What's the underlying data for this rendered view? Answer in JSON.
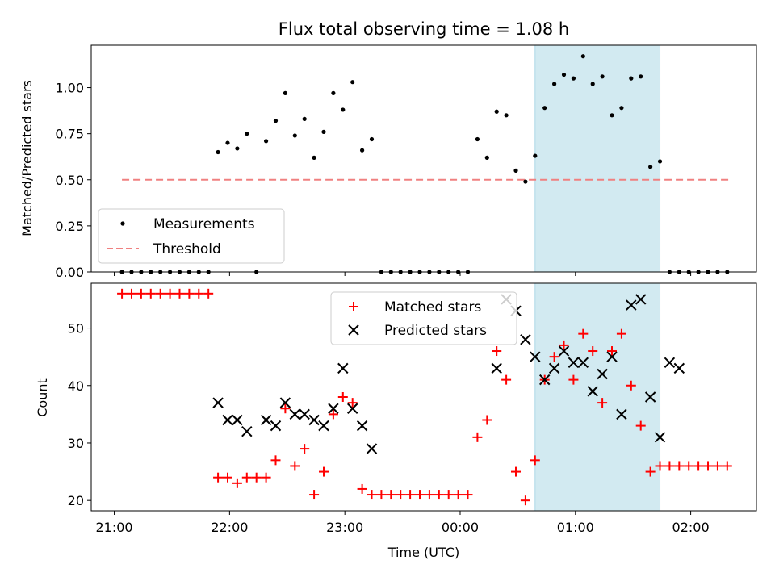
{
  "chart_data": [
    {
      "type": "scatter",
      "title": "Flux total observing time = 1.08 h",
      "xlabel": "",
      "ylabel": "Matched/Predicted stars",
      "ylim": [
        0,
        1.23
      ],
      "yticks": [
        "0.00",
        "0.25",
        "0.50",
        "0.75",
        "1.00"
      ],
      "yticks_values": [
        0,
        0.25,
        0.5,
        0.75,
        1.0
      ],
      "xlim_hours": [
        -0.2,
        5.57
      ],
      "highlight_span": {
        "from": "00:39",
        "to": "01:44",
        "color": "#add8e6"
      },
      "legend": {
        "placement": "lower left",
        "entries": [
          "Measurements",
          "Threshold"
        ]
      },
      "threshold": {
        "name": "Threshold",
        "y": 0.5,
        "x_range": [
          "21:04",
          "02:20"
        ],
        "color": "#f08080"
      },
      "series": [
        {
          "name": "Measurements",
          "color": "#000000",
          "x": [
            "21:04",
            "21:09",
            "21:14",
            "21:19",
            "21:24",
            "21:29",
            "21:34",
            "21:39",
            "21:44",
            "21:49",
            "21:54",
            "21:59",
            "22:04",
            "22:09",
            "22:14",
            "22:19",
            "22:24",
            "22:29",
            "22:34",
            "22:39",
            "22:44",
            "22:49",
            "22:54",
            "22:59",
            "23:04",
            "23:09",
            "23:14",
            "23:19",
            "23:24",
            "23:29",
            "23:34",
            "23:39",
            "23:44",
            "23:49",
            "23:54",
            "23:59",
            "00:04",
            "00:09",
            "00:14",
            "00:19",
            "00:24",
            "00:29",
            "00:34",
            "00:39",
            "00:44",
            "00:49",
            "00:54",
            "00:59",
            "01:04",
            "01:09",
            "01:14",
            "01:19",
            "01:24",
            "01:29",
            "01:34",
            "01:39",
            "01:44",
            "01:49",
            "01:54",
            "01:59",
            "02:04",
            "02:09",
            "02:14",
            "02:19"
          ],
          "y": [
            0,
            0,
            0,
            0,
            0,
            0,
            0,
            0,
            0,
            0,
            0.65,
            0.7,
            0.67,
            0.75,
            0,
            0.71,
            0.82,
            0.97,
            0.74,
            0.83,
            0.62,
            0.76,
            0.97,
            0.88,
            1.03,
            0.66,
            0.72,
            0,
            0,
            0,
            0,
            0,
            0,
            0,
            0,
            0,
            0,
            0.72,
            0.62,
            0.87,
            0.85,
            0.55,
            0.49,
            0.63,
            0.89,
            1.02,
            1.07,
            1.05,
            1.17,
            1.02,
            1.06,
            0.85,
            0.89,
            1.05,
            1.06,
            0.57,
            0.6,
            0,
            0,
            0,
            0,
            0,
            0,
            0
          ]
        }
      ]
    },
    {
      "type": "scatter",
      "title": "",
      "xlabel": "Time (UTC)",
      "ylabel": "Count",
      "ylim": [
        18.2,
        57.8
      ],
      "yticks": [
        "20",
        "30",
        "40",
        "50"
      ],
      "yticks_values": [
        20,
        30,
        40,
        50
      ],
      "xticks": [
        "21:00",
        "22:00",
        "23:00",
        "00:00",
        "01:00",
        "02:00"
      ],
      "xticks_values": [
        0,
        1,
        2,
        3,
        4,
        5
      ],
      "xlim_hours": [
        -0.2,
        5.57
      ],
      "highlight_span": {
        "from": "00:39",
        "to": "01:44",
        "color": "#add8e6"
      },
      "legend": {
        "placement": "upper center",
        "entries": [
          "Matched stars",
          "Predicted stars"
        ]
      },
      "series": [
        {
          "name": "Matched stars",
          "marker": "plus",
          "color": "#ff0000",
          "x": [
            "21:04",
            "21:09",
            "21:14",
            "21:19",
            "21:24",
            "21:29",
            "21:34",
            "21:39",
            "21:44",
            "21:49",
            "21:54",
            "21:59",
            "22:04",
            "22:09",
            "22:14",
            "22:19",
            "22:24",
            "22:29",
            "22:34",
            "22:39",
            "22:44",
            "22:49",
            "22:54",
            "22:59",
            "23:04",
            "23:09",
            "23:14",
            "23:19",
            "23:24",
            "23:29",
            "23:34",
            "23:39",
            "23:44",
            "23:49",
            "23:54",
            "23:59",
            "00:04",
            "00:09",
            "00:14",
            "00:19",
            "00:24",
            "00:29",
            "00:34",
            "00:39",
            "00:44",
            "00:49",
            "00:54",
            "00:59",
            "01:04",
            "01:09",
            "01:14",
            "01:19",
            "01:24",
            "01:29",
            "01:34",
            "01:39",
            "01:44",
            "01:49",
            "01:54",
            "01:59",
            "02:04",
            "02:09",
            "02:14",
            "02:19"
          ],
          "y": [
            56,
            56,
            56,
            56,
            56,
            56,
            56,
            56,
            56,
            56,
            24,
            24,
            23,
            24,
            24,
            24,
            27,
            36,
            26,
            29,
            21,
            25,
            35,
            38,
            37,
            22,
            21,
            21,
            21,
            21,
            21,
            21,
            21,
            21,
            21,
            21,
            21,
            31,
            34,
            46,
            41,
            25,
            20,
            27,
            41,
            45,
            47,
            41,
            49,
            46,
            37,
            46,
            49,
            40,
            33,
            25,
            26,
            26,
            26,
            26,
            26,
            26,
            26,
            26
          ]
        },
        {
          "name": "Predicted stars",
          "marker": "x",
          "color": "#000000",
          "x": [
            "21:54",
            "21:59",
            "22:04",
            "22:09",
            "22:19",
            "22:24",
            "22:29",
            "22:34",
            "22:39",
            "22:44",
            "22:49",
            "22:54",
            "22:59",
            "23:04",
            "23:09",
            "23:14",
            "00:19",
            "00:24",
            "00:29",
            "00:34",
            "00:39",
            "00:44",
            "00:49",
            "00:54",
            "00:59",
            "01:04",
            "01:09",
            "01:14",
            "01:19",
            "01:24",
            "01:29",
            "01:34",
            "01:39",
            "01:44",
            "01:49",
            "01:54",
            "01:59",
            "02:04",
            "02:09",
            "02:14",
            "02:19"
          ],
          "y": [
            37,
            34,
            34,
            32,
            34,
            33,
            37,
            35,
            35,
            34,
            33,
            36,
            43,
            36,
            33,
            29,
            43,
            55,
            53,
            48,
            45,
            41,
            43,
            46,
            44,
            44,
            39,
            42,
            45,
            35,
            54,
            55,
            38,
            31,
            44,
            43,
            null,
            null,
            null,
            null,
            null
          ]
        }
      ]
    }
  ]
}
